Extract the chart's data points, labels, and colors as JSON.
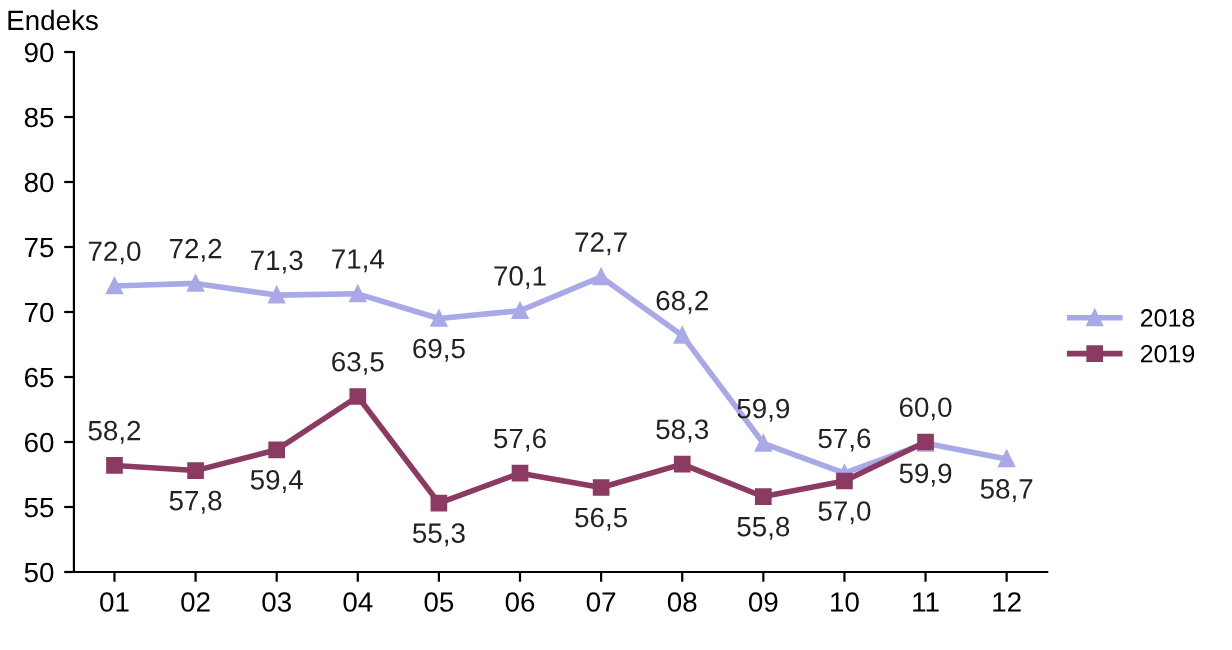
{
  "chart_data": {
    "type": "line",
    "ylabel": "Endeks",
    "categories": [
      "01",
      "02",
      "03",
      "04",
      "05",
      "06",
      "07",
      "08",
      "09",
      "10",
      "11",
      "12"
    ],
    "series": [
      {
        "name": "2018",
        "color": "#a9a9e8",
        "marker": "triangle",
        "values": [
          72.0,
          72.2,
          71.3,
          71.4,
          69.5,
          70.1,
          72.7,
          68.2,
          59.9,
          57.6,
          59.9,
          58.7
        ],
        "value_labels": [
          "72,0",
          "72,2",
          "71,3",
          "71,4",
          "69,5",
          "70,1",
          "72,7",
          "68,2",
          "59,9",
          "57,6",
          "59,9",
          "58,7"
        ]
      },
      {
        "name": "2019",
        "color": "#8b3a62",
        "marker": "square",
        "values": [
          58.2,
          57.8,
          59.4,
          63.5,
          55.3,
          57.6,
          56.5,
          58.3,
          55.8,
          57.0,
          60.0,
          null
        ],
        "value_labels": [
          "58,2",
          "57,8",
          "59,4",
          "63,5",
          "55,3",
          "57,6",
          "56,5",
          "58,3",
          "55,8",
          "57,0",
          "60,0",
          null
        ]
      }
    ],
    "ylim": [
      50,
      90
    ],
    "yticks": [
      50,
      55,
      60,
      65,
      70,
      75,
      80,
      85,
      90
    ],
    "grid": false,
    "legend": "right"
  }
}
